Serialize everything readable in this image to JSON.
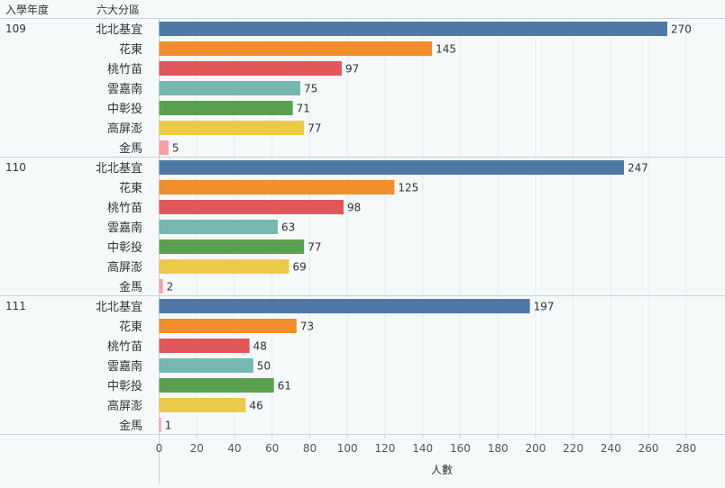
{
  "header": {
    "year_col": "入學年度",
    "region_col": "六大分區"
  },
  "chart_data": {
    "type": "bar",
    "orientation": "horizontal",
    "xlabel": "人數",
    "xlim": [
      0,
      300
    ],
    "xticks": [
      0,
      20,
      40,
      60,
      80,
      100,
      120,
      140,
      160,
      180,
      200,
      220,
      240,
      260,
      280
    ],
    "grid": true,
    "categories": [
      "北北基宜",
      "花東",
      "桃竹苗",
      "雲嘉南",
      "中彰投",
      "高屏澎",
      "金馬"
    ],
    "colors": [
      "#4e79a7",
      "#f28e2b",
      "#e15759",
      "#76b7b2",
      "#59a14f",
      "#edc948",
      "#ff9da7"
    ],
    "groups": [
      {
        "year": "109",
        "values": [
          270,
          145,
          97,
          75,
          71,
          77,
          5
        ]
      },
      {
        "year": "110",
        "values": [
          247,
          125,
          98,
          63,
          77,
          69,
          2
        ]
      },
      {
        "year": "111",
        "values": [
          197,
          73,
          48,
          50,
          61,
          46,
          1
        ]
      }
    ]
  }
}
